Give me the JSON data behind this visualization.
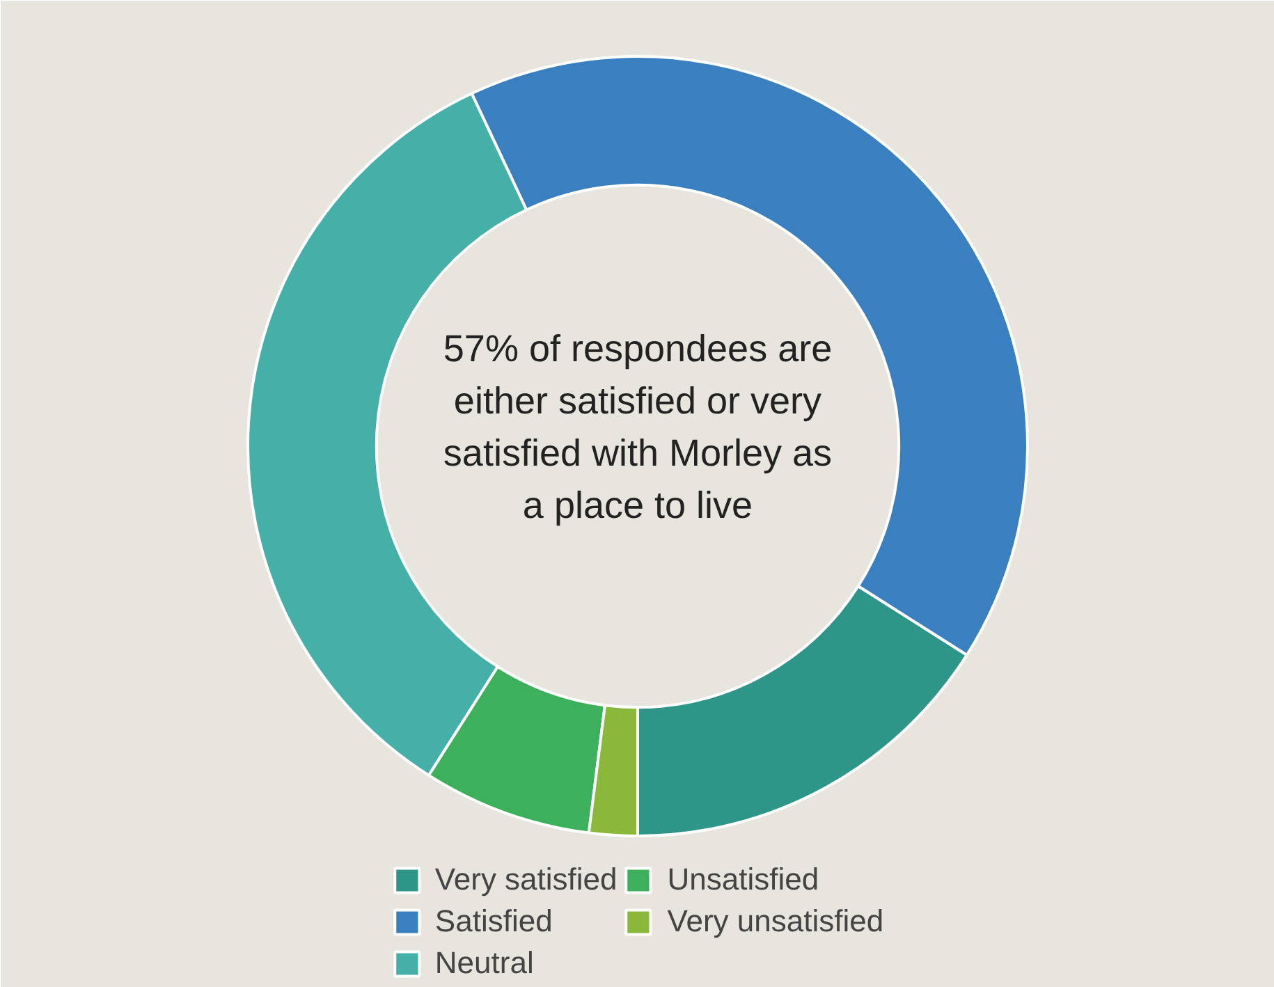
{
  "chart_data": {
    "type": "donut",
    "categories": [
      "Very satisfied",
      "Satisfied",
      "Neutral",
      "Unsatisfied",
      "Very unsatisfied"
    ],
    "values": [
      16,
      41,
      34,
      7,
      2
    ],
    "colors": [
      "#2e9688",
      "#3a80c0",
      "#45b0a8",
      "#3cb05a",
      "#8ab83a"
    ],
    "legend": "bottom",
    "annotations": [
      "57% of respondees are either satisfied or very satisfied with Morley as a place to live"
    ]
  }
}
